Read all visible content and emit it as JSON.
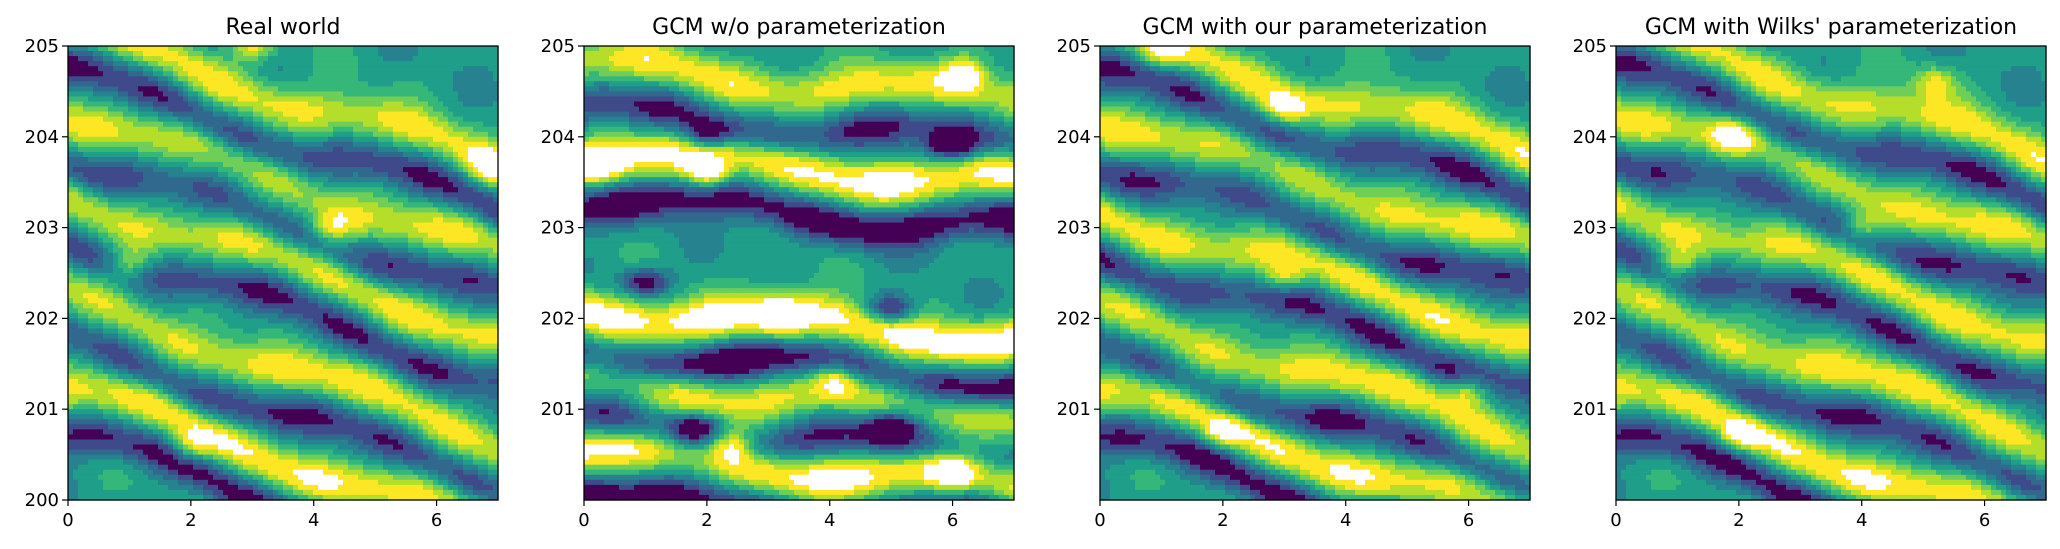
{
  "chart_data": [
    {
      "type": "heatmap",
      "title": "Real world",
      "xlabel": "",
      "ylabel": "",
      "xlim": [
        0,
        7
      ],
      "ylim": [
        200,
        205
      ],
      "x_ticks": [
        "0",
        "2",
        "4",
        "6"
      ],
      "y_ticks": [
        "200",
        "201",
        "202",
        "203",
        "204",
        "205"
      ],
      "style": "filled-contour, viridis, 8 levels",
      "band_tilt": 0.22,
      "bands": [
        {
          "y": 200.45,
          "strength": 1.0
        },
        {
          "y": 201.45,
          "strength": 0.9
        },
        {
          "y": 202.6,
          "strength": 0.85
        },
        {
          "y": 203.5,
          "strength": 0.8
        },
        {
          "y": 204.45,
          "strength": 0.9
        }
      ],
      "blobs": [
        {
          "x": 2.0,
          "y": 200.6,
          "value": 1.0
        },
        {
          "x": 1.0,
          "y": 202.6,
          "value": 0.9
        },
        {
          "x": 3.0,
          "y": 205.0,
          "value": 0.95
        },
        {
          "x": 6.9,
          "y": 203.7,
          "value": 0.9
        },
        {
          "x": 4.3,
          "y": 203.0,
          "value": 0.85
        }
      ],
      "dark_spots": []
    },
    {
      "type": "heatmap",
      "title": "GCM w/o parameterization",
      "xlabel": "",
      "ylabel": "",
      "xlim": [
        0,
        7
      ],
      "ylim": [
        200,
        205
      ],
      "x_ticks": [
        "0",
        "2",
        "4",
        "6"
      ],
      "y_ticks": [
        "201",
        "202",
        "203",
        "204",
        "205"
      ],
      "style": "filled-contour, viridis, 8 levels",
      "band_tilt": 0.05,
      "bands": [
        {
          "y": 200.35,
          "strength": 1.2
        },
        {
          "y": 201.15,
          "strength": 0.9
        },
        {
          "y": 201.95,
          "strength": 1.3
        },
        {
          "y": 203.65,
          "strength": 1.2
        },
        {
          "y": 204.6,
          "strength": 0.9
        }
      ],
      "blobs": [
        {
          "x": 2.0,
          "y": 203.6,
          "value": 1.3
        },
        {
          "x": 3.2,
          "y": 202.0,
          "value": 1.3
        },
        {
          "x": 0.2,
          "y": 203.7,
          "value": 1.2
        },
        {
          "x": 6.0,
          "y": 200.3,
          "value": 1.2
        },
        {
          "x": 2.4,
          "y": 200.6,
          "value": 1.2
        },
        {
          "x": 4.1,
          "y": 201.35,
          "value": 1.1
        },
        {
          "x": 6.2,
          "y": 204.7,
          "value": 1.1
        }
      ],
      "dark_spots": [
        {
          "x": 2.0,
          "y": 204.0
        },
        {
          "x": 1.0,
          "y": 202.4
        },
        {
          "x": 5.0,
          "y": 202.1
        },
        {
          "x": 6.0,
          "y": 203.9
        },
        {
          "x": 5.0,
          "y": 200.8
        },
        {
          "x": 1.8,
          "y": 200.8
        }
      ]
    },
    {
      "type": "heatmap",
      "title": "GCM with our parameterization",
      "xlabel": "",
      "ylabel": "",
      "xlim": [
        0,
        7
      ],
      "ylim": [
        200,
        205
      ],
      "x_ticks": [
        "0",
        "2",
        "4",
        "6"
      ],
      "y_ticks": [
        "201",
        "202",
        "203",
        "204",
        "205"
      ],
      "style": "filled-contour, viridis, 8 levels",
      "band_tilt": 0.2,
      "bands": [
        {
          "y": 200.5,
          "strength": 1.0
        },
        {
          "y": 201.4,
          "strength": 0.9
        },
        {
          "y": 202.5,
          "strength": 0.9
        },
        {
          "y": 203.5,
          "strength": 0.85
        },
        {
          "y": 204.5,
          "strength": 0.9
        }
      ],
      "blobs": [
        {
          "x": 2.0,
          "y": 200.75,
          "value": 1.0
        },
        {
          "x": 6.0,
          "y": 201.2,
          "value": 1.0
        },
        {
          "x": 3.0,
          "y": 202.45,
          "value": 0.9
        },
        {
          "x": 3.0,
          "y": 204.3,
          "value": 0.95
        },
        {
          "x": 1.0,
          "y": 204.95,
          "value": 0.9
        }
      ],
      "dark_spots": []
    },
    {
      "type": "heatmap",
      "title": "GCM with Wilks' parameterization",
      "xlabel": "",
      "ylabel": "",
      "xlim": [
        0,
        7
      ],
      "ylim": [
        200,
        205
      ],
      "x_ticks": [
        "0",
        "2",
        "4",
        "6"
      ],
      "y_ticks": [
        "201",
        "202",
        "203",
        "204",
        "205"
      ],
      "style": "filled-contour, viridis, 8 levels",
      "band_tilt": 0.22,
      "bands": [
        {
          "y": 200.45,
          "strength": 1.0
        },
        {
          "y": 201.45,
          "strength": 0.9
        },
        {
          "y": 202.55,
          "strength": 0.85
        },
        {
          "y": 203.55,
          "strength": 0.85
        },
        {
          "y": 204.5,
          "strength": 0.9
        }
      ],
      "blobs": [
        {
          "x": 2.0,
          "y": 200.7,
          "value": 1.0
        },
        {
          "x": 1.9,
          "y": 204.0,
          "value": 1.0
        },
        {
          "x": 1.0,
          "y": 202.6,
          "value": 0.9
        },
        {
          "x": 4.0,
          "y": 203.0,
          "value": 0.9
        },
        {
          "x": 5.2,
          "y": 204.6,
          "value": 0.9
        }
      ],
      "dark_spots": []
    }
  ]
}
